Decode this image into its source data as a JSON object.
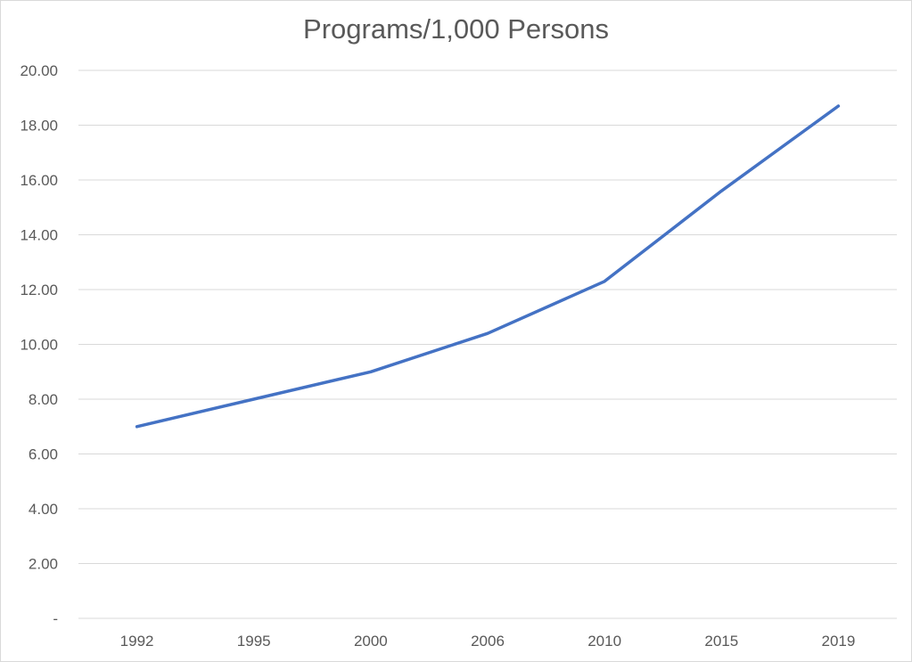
{
  "chart_data": {
    "type": "line",
    "title": "Programs/1,000 Persons",
    "xlabel": "",
    "ylabel": "",
    "categories": [
      "1992",
      "1995",
      "2000",
      "2006",
      "2010",
      "2015",
      "2019"
    ],
    "series": [
      {
        "values": [
          7.0,
          8.0,
          9.0,
          10.4,
          12.3,
          15.6,
          18.7
        ]
      }
    ],
    "ylim": [
      0,
      20
    ],
    "yticks": [
      0,
      2,
      4,
      6,
      8,
      10,
      12,
      14,
      16,
      18,
      20
    ],
    "ytick_labels": [
      "-",
      "2.00",
      "4.00",
      "6.00",
      "8.00",
      "10.00",
      "12.00",
      "14.00",
      "16.00",
      "18.00",
      "20.00"
    ],
    "grid": true,
    "legend": "none",
    "colors": {
      "line": "#4472c4",
      "grid": "#d9d9d9",
      "text": "#595959"
    }
  }
}
